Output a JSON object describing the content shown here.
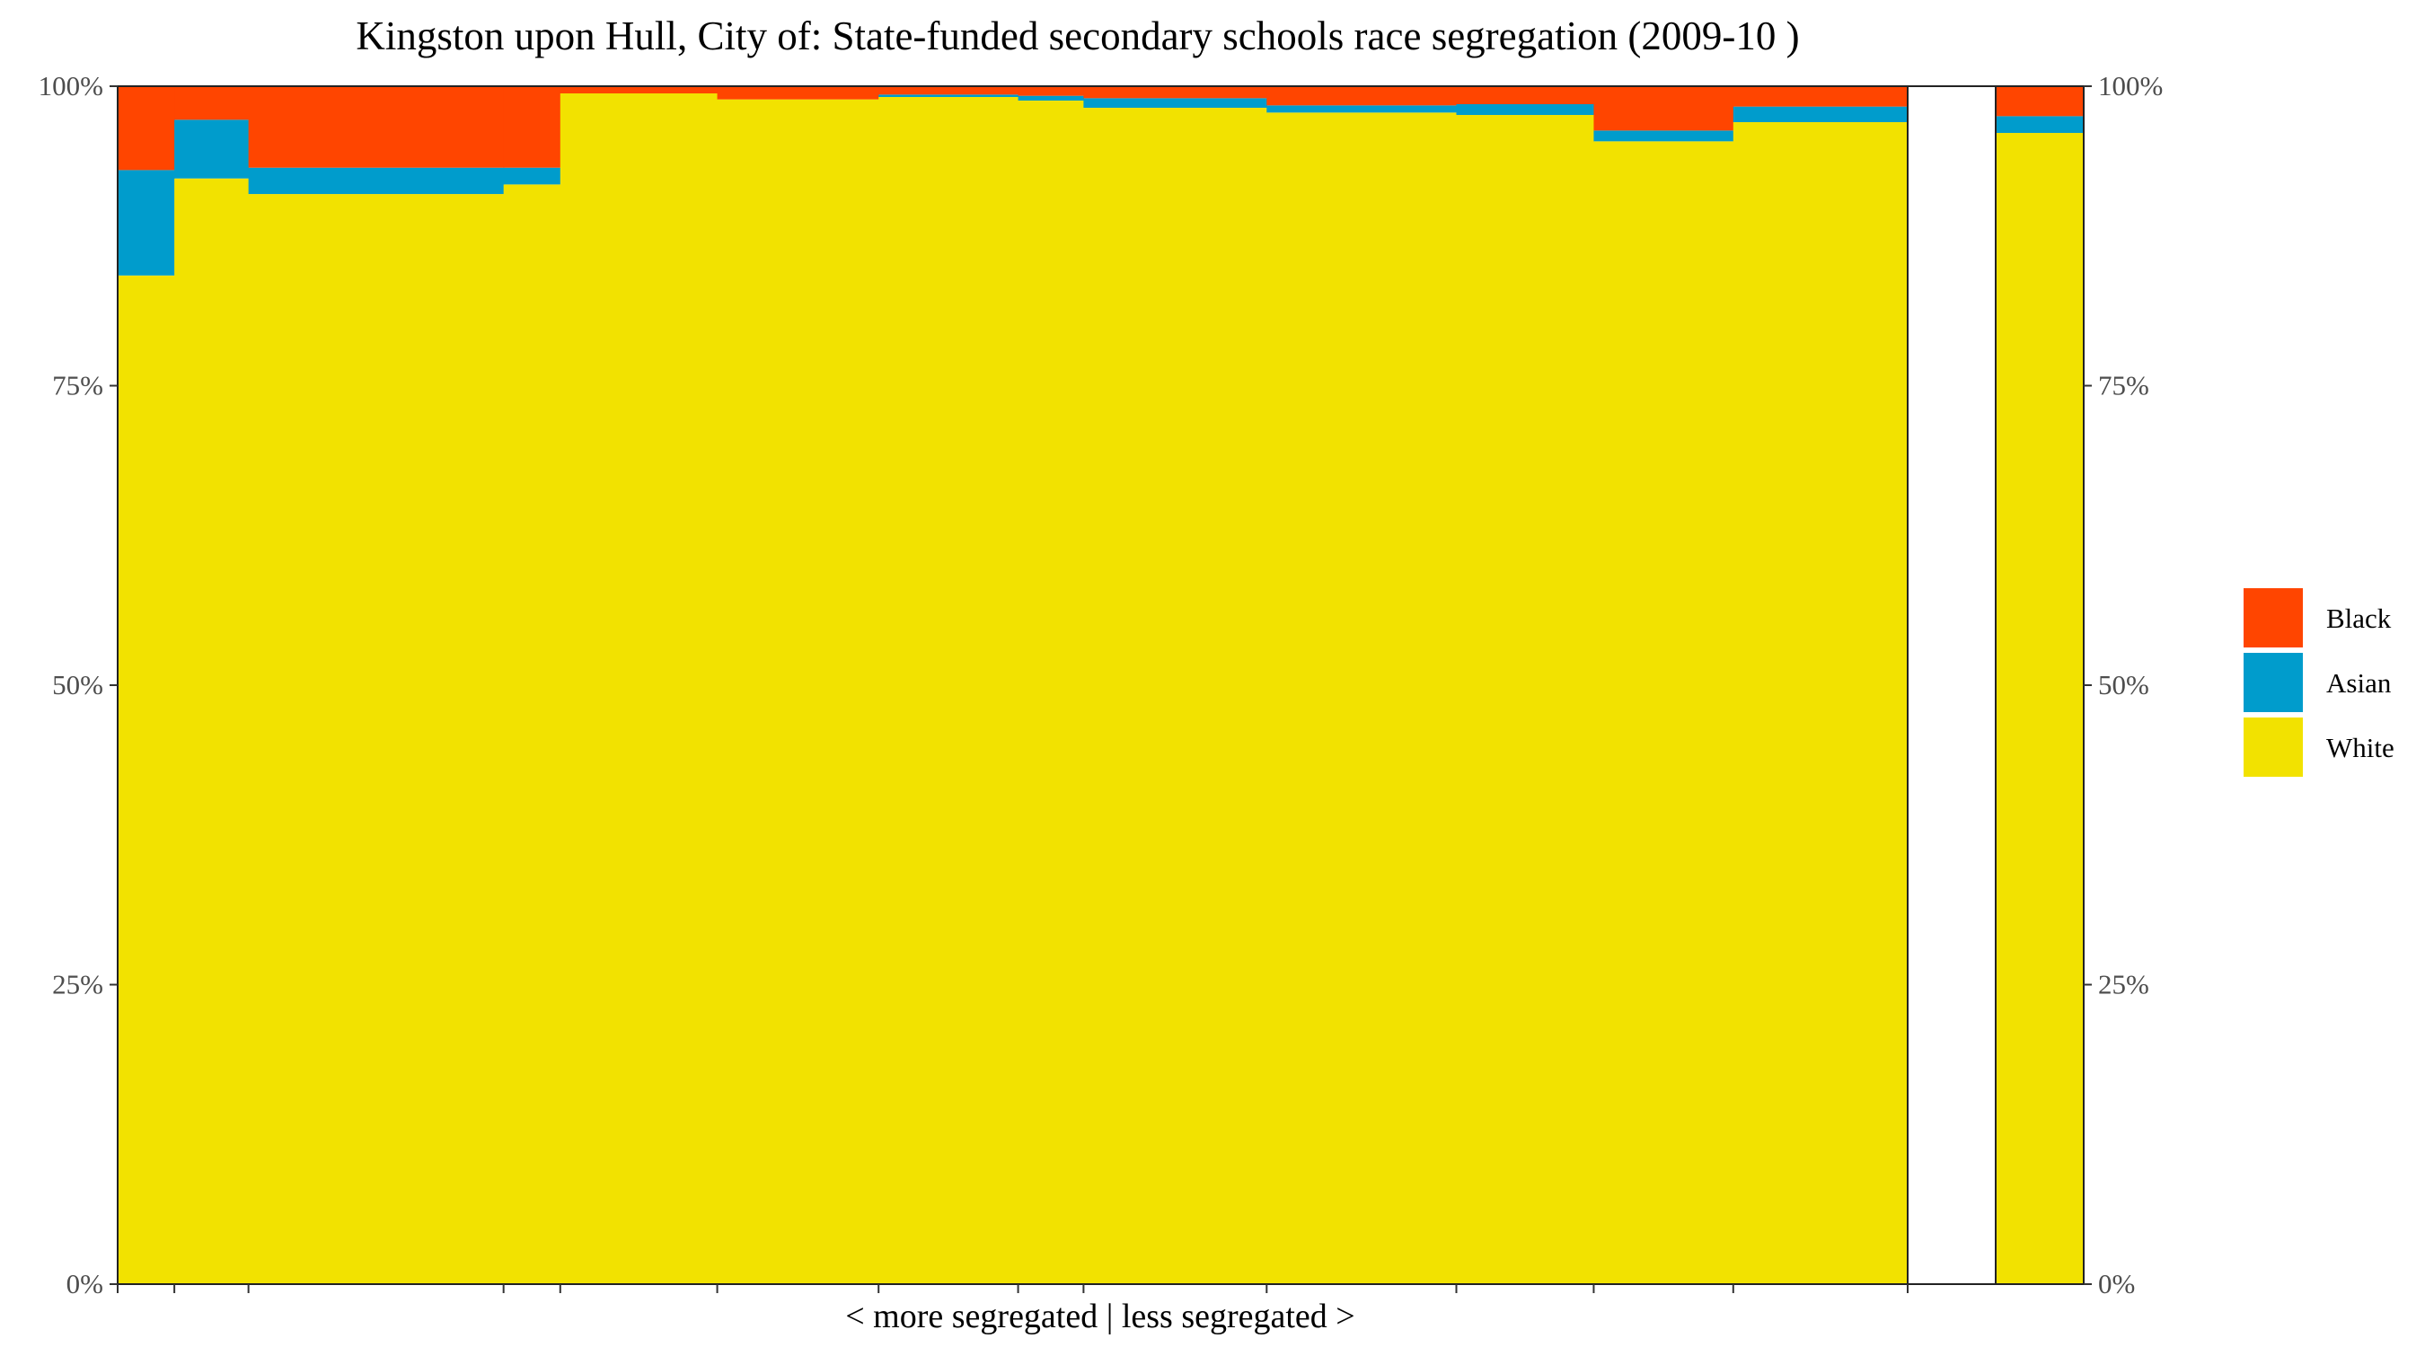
{
  "chart_data": {
    "type": "bar",
    "subtype": "stacked-100-percent-variable-width",
    "title": "Kingston upon Hull, City of: State-funded secondary schools race segregation (2009-10 )",
    "xlabel": "< more segregated | less segregated >",
    "ylabel": "",
    "ylim": [
      0,
      100
    ],
    "y_ticks": [
      "0%",
      "25%",
      "50%",
      "75%",
      "100%"
    ],
    "y_axis_sides": "left and right",
    "grid": false,
    "legend_position": "right",
    "series": [
      {
        "name": "White",
        "color": "#F2E200"
      },
      {
        "name": "Asian",
        "color": "#009CCC"
      },
      {
        "name": "Black",
        "color": "#FF4500"
      }
    ],
    "legend_order": [
      "Black",
      "Asian",
      "White"
    ],
    "schools": [
      {
        "weight": 2.6,
        "white": 84.2,
        "asian": 8.8,
        "black": 7.0
      },
      {
        "weight": 3.4,
        "white": 92.3,
        "asian": 4.9,
        "black": 2.8
      },
      {
        "weight": 11.7,
        "white": 91.0,
        "asian": 2.2,
        "black": 6.8
      },
      {
        "weight": 2.6,
        "white": 91.8,
        "asian": 1.4,
        "black": 6.8
      },
      {
        "weight": 7.2,
        "white": 99.4,
        "asian": 0.0,
        "black": 0.6
      },
      {
        "weight": 7.4,
        "white": 98.9,
        "asian": 0.0,
        "black": 1.1
      },
      {
        "weight": 6.4,
        "white": 99.1,
        "asian": 0.2,
        "black": 0.7
      },
      {
        "weight": 3.0,
        "white": 98.8,
        "asian": 0.4,
        "black": 0.8
      },
      {
        "weight": 8.4,
        "white": 98.2,
        "asian": 0.8,
        "black": 1.0
      },
      {
        "weight": 8.7,
        "white": 97.8,
        "asian": 0.6,
        "black": 1.6
      },
      {
        "weight": 6.3,
        "white": 97.6,
        "asian": 0.9,
        "black": 1.5
      },
      {
        "weight": 6.4,
        "white": 95.4,
        "asian": 0.9,
        "black": 3.7
      },
      {
        "weight": 8.0,
        "white": 97.0,
        "asian": 1.3,
        "black": 1.7
      }
    ],
    "overall": {
      "white": 96.1,
      "asian": 1.4,
      "black": 2.5
    }
  }
}
